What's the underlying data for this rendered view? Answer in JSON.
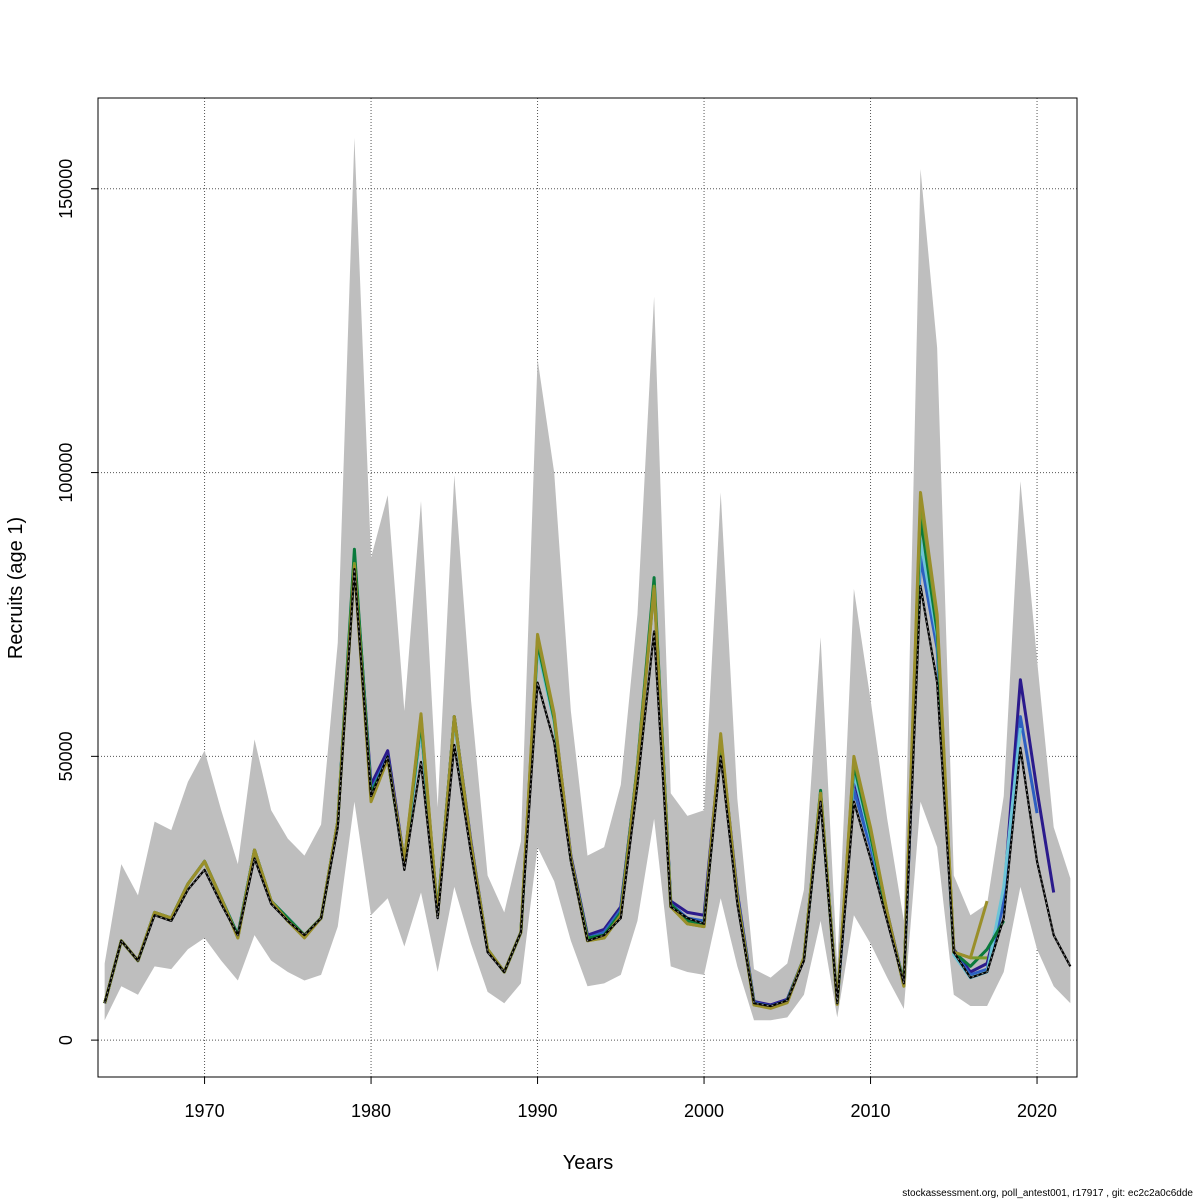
{
  "chart_data": {
    "type": "line",
    "xlabel": "Years",
    "ylabel": "Recruits (age 1)",
    "footer": "stockassessment.org, poll_antest001, r17917 , git: ec2c2a0c6dde",
    "xlim": [
      1963.6,
      2022.4
    ],
    "ylim": [
      -6500,
      166000
    ],
    "x_ticks": [
      1970,
      1980,
      1990,
      2000,
      2010,
      2020
    ],
    "x_tick_labels": [
      "1970",
      "1980",
      "1990",
      "2000",
      "2010",
      "2020"
    ],
    "y_ticks": [
      0,
      50000,
      100000,
      150000
    ],
    "y_tick_labels": [
      "0",
      "50000",
      "100000",
      "150000"
    ],
    "grid": true,
    "colors": {
      "band": "#bebebe",
      "base": "#000000",
      "series": [
        "#2b1a8c",
        "#2d5fc2",
        "#6cc4d6",
        "#0a7a3c",
        "#7a9a2a",
        "#9a8f2a"
      ]
    },
    "band": {
      "x": [
        1964,
        1965,
        1966,
        1967,
        1968,
        1969,
        1970,
        1971,
        1972,
        1973,
        1974,
        1975,
        1976,
        1977,
        1978,
        1979,
        1980,
        1981,
        1982,
        1983,
        1984,
        1985,
        1986,
        1987,
        1988,
        1989,
        1990,
        1991,
        1992,
        1993,
        1994,
        1995,
        1996,
        1997,
        1998,
        1999,
        2000,
        2001,
        2002,
        2003,
        2004,
        2005,
        2006,
        2007,
        2008,
        2009,
        2010,
        2011,
        2012,
        2013,
        2014,
        2015,
        2016,
        2017,
        2018,
        2019,
        2020,
        2021,
        2022
      ],
      "lower": [
        3500,
        9500,
        8000,
        13000,
        12500,
        16000,
        18000,
        14000,
        10500,
        18500,
        14000,
        12000,
        10500,
        11500,
        20000,
        42000,
        22000,
        25000,
        16500,
        26000,
        12000,
        27000,
        17000,
        8500,
        6500,
        10000,
        34000,
        28000,
        17500,
        9500,
        10000,
        11500,
        21000,
        39000,
        13000,
        12000,
        11500,
        25000,
        13000,
        3500,
        3500,
        4000,
        8000,
        21000,
        4000,
        22000,
        17000,
        11000,
        5500,
        42000,
        34000,
        8000,
        6000,
        6000,
        12000,
        27000,
        16000,
        9500,
        6500
      ],
      "upper": [
        13500,
        31000,
        25500,
        38500,
        37000,
        45500,
        51000,
        40500,
        31000,
        53000,
        40500,
        35500,
        32500,
        38000,
        70000,
        159000,
        85000,
        96000,
        58000,
        95000,
        41000,
        99500,
        60000,
        29000,
        22500,
        35000,
        120000,
        100000,
        58000,
        32500,
        34000,
        45000,
        75000,
        131000,
        43500,
        39500,
        40500,
        96500,
        42500,
        12500,
        11000,
        13500,
        26500,
        71000,
        13000,
        79500,
        60000,
        39000,
        21000,
        153500,
        122000,
        29000,
        22000,
        24000,
        43000,
        98500,
        67000,
        37500,
        28500
      ]
    },
    "base": {
      "name": "",
      "x": [
        1964,
        1965,
        1966,
        1967,
        1968,
        1969,
        1970,
        1971,
        1972,
        1973,
        1974,
        1975,
        1976,
        1977,
        1978,
        1979,
        1980,
        1981,
        1982,
        1983,
        1984,
        1985,
        1986,
        1987,
        1988,
        1989,
        1990,
        1991,
        1992,
        1993,
        1994,
        1995,
        1996,
        1997,
        1998,
        1999,
        2000,
        2001,
        2002,
        2003,
        2004,
        2005,
        2006,
        2007,
        2008,
        2009,
        2010,
        2011,
        2012,
        2013,
        2014,
        2015,
        2016,
        2017,
        2018,
        2019,
        2020,
        2021,
        2022
      ],
      "values": [
        6500,
        17500,
        14000,
        22000,
        21000,
        26500,
        30000,
        24000,
        18500,
        32000,
        24000,
        21000,
        18500,
        21500,
        37500,
        83000,
        43000,
        50000,
        30000,
        49000,
        21500,
        52000,
        33000,
        15500,
        12000,
        19000,
        63000,
        52500,
        31500,
        17500,
        18500,
        21500,
        45000,
        72000,
        23500,
        21500,
        20500,
        50000,
        24000,
        6500,
        6000,
        7000,
        14000,
        42000,
        6500,
        42000,
        32000,
        21000,
        10000,
        80000,
        63000,
        15500,
        11000,
        12000,
        21500,
        51500,
        31500,
        18500,
        13000
      ]
    },
    "series": [
      {
        "name": "",
        "x": [
          1964,
          1965,
          1966,
          1967,
          1968,
          1969,
          1970,
          1971,
          1972,
          1973,
          1974,
          1975,
          1976,
          1977,
          1978,
          1979,
          1980,
          1981,
          1982,
          1983,
          1984,
          1985,
          1986,
          1987,
          1988,
          1989,
          1990,
          1991,
          1992,
          1993,
          1994,
          1995,
          1996,
          1997,
          1998,
          1999,
          2000,
          2001,
          2002,
          2003,
          2004,
          2005,
          2006,
          2007,
          2008,
          2009,
          2010,
          2011,
          2012,
          2013,
          2014,
          2015,
          2016,
          2017,
          2018,
          2019,
          2020,
          2021
        ],
        "values": [
          6500,
          17500,
          14000,
          22500,
          21500,
          27500,
          31500,
          25000,
          18500,
          33500,
          24500,
          21500,
          18500,
          21500,
          38500,
          85000,
          45000,
          51000,
          31500,
          56000,
          22500,
          57000,
          35000,
          16000,
          12000,
          19000,
          70000,
          57000,
          32500,
          18500,
          19500,
          23500,
          48000,
          80000,
          24500,
          22500,
          22000,
          53000,
          26000,
          6800,
          6200,
          7200,
          14500,
          43500,
          6800,
          46000,
          35000,
          22500,
          10000,
          87000,
          70000,
          16000,
          12000,
          13500,
          25000,
          63500,
          44000,
          26000
        ]
      },
      {
        "name": "",
        "x": [
          1964,
          1965,
          1966,
          1967,
          1968,
          1969,
          1970,
          1971,
          1972,
          1973,
          1974,
          1975,
          1976,
          1977,
          1978,
          1979,
          1980,
          1981,
          1982,
          1983,
          1984,
          1985,
          1986,
          1987,
          1988,
          1989,
          1990,
          1991,
          1992,
          1993,
          1994,
          1995,
          1996,
          1997,
          1998,
          1999,
          2000,
          2001,
          2002,
          2003,
          2004,
          2005,
          2006,
          2007,
          2008,
          2009,
          2010,
          2011,
          2012,
          2013,
          2014,
          2015,
          2016,
          2017,
          2018,
          2019,
          2020
        ],
        "values": [
          6500,
          17500,
          14000,
          22500,
          21500,
          27500,
          31500,
          25000,
          18500,
          33500,
          24500,
          21500,
          18500,
          21500,
          38500,
          85500,
          44000,
          50000,
          31000,
          55000,
          22500,
          56500,
          34500,
          16000,
          12000,
          19000,
          69500,
          56500,
          32000,
          18000,
          19000,
          23000,
          48000,
          80000,
          24000,
          21500,
          21000,
          52500,
          25500,
          6600,
          6000,
          7000,
          14500,
          43000,
          6600,
          44000,
          34000,
          22000,
          10000,
          85000,
          69000,
          15500,
          11500,
          12500,
          24000,
          57000,
          40000
        ]
      },
      {
        "name": "",
        "x": [
          1964,
          1965,
          1966,
          1967,
          1968,
          1969,
          1970,
          1971,
          1972,
          1973,
          1974,
          1975,
          1976,
          1977,
          1978,
          1979,
          1980,
          1981,
          1982,
          1983,
          1984,
          1985,
          1986,
          1987,
          1988,
          1989,
          1990,
          1991,
          1992,
          1993,
          1994,
          1995,
          1996,
          1997,
          1998,
          1999,
          2000,
          2001,
          2002,
          2003,
          2004,
          2005,
          2006,
          2007,
          2008,
          2009,
          2010,
          2011,
          2012,
          2013,
          2014,
          2015,
          2016,
          2017,
          2018,
          2019
        ],
        "values": [
          6500,
          17500,
          14000,
          22500,
          21500,
          27500,
          31500,
          25000,
          18500,
          33500,
          24500,
          21500,
          18500,
          21500,
          38500,
          85500,
          43500,
          49500,
          31000,
          55000,
          22500,
          56500,
          34000,
          16000,
          12000,
          19000,
          69000,
          56000,
          32000,
          18000,
          18500,
          22500,
          48000,
          80000,
          23500,
          21000,
          20500,
          52500,
          25000,
          6400,
          5800,
          6800,
          14500,
          43000,
          6500,
          47000,
          35500,
          22000,
          10000,
          88000,
          71000,
          15000,
          11000,
          12000,
          27000,
          55000
        ]
      },
      {
        "name": "",
        "x": [
          1964,
          1965,
          1966,
          1967,
          1968,
          1969,
          1970,
          1971,
          1972,
          1973,
          1974,
          1975,
          1976,
          1977,
          1978,
          1979,
          1980,
          1981,
          1982,
          1983,
          1984,
          1985,
          1986,
          1987,
          1988,
          1989,
          1990,
          1991,
          1992,
          1993,
          1994,
          1995,
          1996,
          1997,
          1998,
          1999,
          2000,
          2001,
          2002,
          2003,
          2004,
          2005,
          2006,
          2007,
          2008,
          2009,
          2010,
          2011,
          2012,
          2013,
          2014,
          2015,
          2016,
          2017,
          2018
        ],
        "values": [
          6500,
          17500,
          14000,
          22500,
          21500,
          27500,
          31500,
          25000,
          18500,
          33500,
          24500,
          21500,
          18500,
          21500,
          38500,
          86500,
          43500,
          49500,
          31500,
          56000,
          22500,
          57000,
          34500,
          16000,
          12000,
          19000,
          70000,
          56500,
          32000,
          18000,
          18500,
          22500,
          48500,
          81500,
          24000,
          21000,
          20500,
          53000,
          25000,
          6400,
          5800,
          6900,
          14500,
          44000,
          6500,
          48500,
          36000,
          22000,
          10000,
          92000,
          72000,
          15500,
          13000,
          16000,
          21000
        ]
      },
      {
        "name": "",
        "x": [
          1964,
          1965,
          1966,
          1967,
          1968,
          1969,
          1970,
          1971,
          1972,
          1973,
          1974,
          1975,
          1976,
          1977,
          1978,
          1979,
          1980,
          1981,
          1982,
          1983,
          1984,
          1985,
          1986,
          1987,
          1988,
          1989,
          1990,
          1991,
          1992,
          1993,
          1994,
          1995,
          1996,
          1997,
          1998,
          1999,
          2000,
          2001,
          2002,
          2003,
          2004,
          2005,
          2006,
          2007,
          2008,
          2009,
          2010,
          2011,
          2012,
          2013,
          2014,
          2015,
          2016,
          2017
        ],
        "values": [
          6500,
          17500,
          14000,
          22500,
          21500,
          27500,
          31500,
          25000,
          18000,
          33500,
          24500,
          21000,
          18500,
          21500,
          38500,
          84000,
          42500,
          49500,
          31500,
          57000,
          22000,
          57000,
          34500,
          16000,
          12000,
          19000,
          71000,
          57000,
          32000,
          17500,
          18000,
          22000,
          48000,
          80000,
          23500,
          20500,
          20000,
          53500,
          25000,
          6200,
          5700,
          6700,
          14500,
          43500,
          6400,
          49500,
          37000,
          22500,
          9500,
          95000,
          74000,
          15500,
          14500,
          14500
        ]
      },
      {
        "name": "",
        "x": [
          1964,
          1965,
          1966,
          1967,
          1968,
          1969,
          1970,
          1971,
          1972,
          1973,
          1974,
          1975,
          1976,
          1977,
          1978,
          1979,
          1980,
          1981,
          1982,
          1983,
          1984,
          1985,
          1986,
          1987,
          1988,
          1989,
          1990,
          1991,
          1992,
          1993,
          1994,
          1995,
          1996,
          1997,
          1998,
          1999,
          2000,
          2001,
          2002,
          2003,
          2004,
          2005,
          2006,
          2007,
          2008,
          2009,
          2010,
          2011,
          2012,
          2013,
          2014,
          2015,
          2016,
          2017
        ],
        "values": [
          6500,
          17500,
          14000,
          22500,
          21500,
          27500,
          31500,
          25000,
          18000,
          33500,
          24500,
          21000,
          18000,
          21500,
          38500,
          83500,
          42000,
          49500,
          31500,
          57500,
          22000,
          57000,
          34500,
          16000,
          12000,
          19000,
          71500,
          57500,
          32000,
          17500,
          18000,
          22000,
          48000,
          79500,
          23500,
          20500,
          20000,
          54000,
          25000,
          6200,
          5600,
          6600,
          14500,
          43500,
          6300,
          50000,
          37500,
          22500,
          9500,
          96500,
          75000,
          15500,
          14500,
          24500
        ]
      }
    ]
  }
}
